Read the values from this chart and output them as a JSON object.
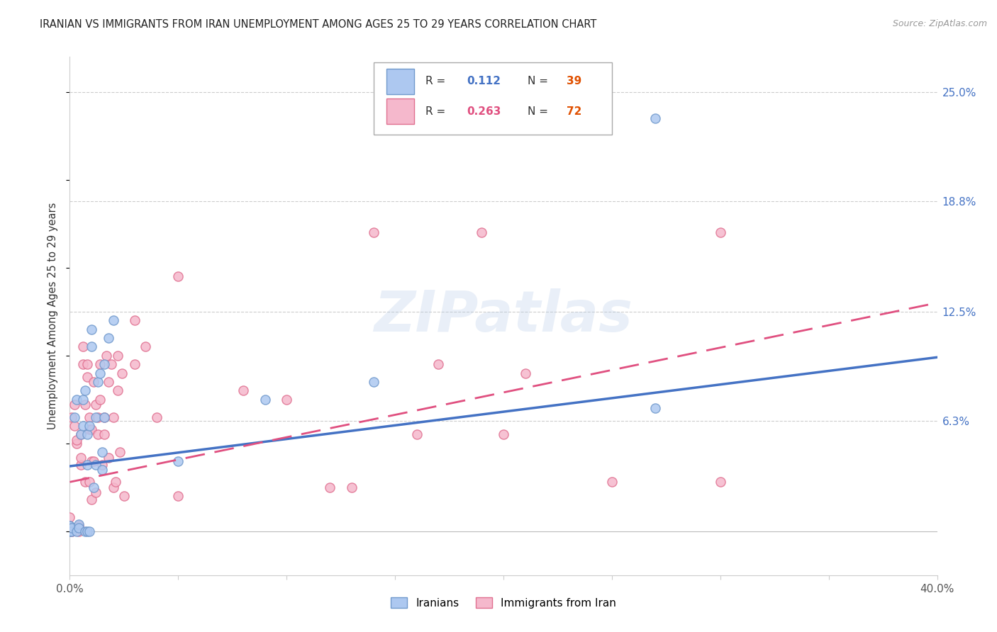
{
  "title": "IRANIAN VS IMMIGRANTS FROM IRAN UNEMPLOYMENT AMONG AGES 25 TO 29 YEARS CORRELATION CHART",
  "source": "Source: ZipAtlas.com",
  "ylabel": "Unemployment Among Ages 25 to 29 years",
  "xlim": [
    0.0,
    0.4
  ],
  "ylim": [
    -0.025,
    0.27
  ],
  "xtick_positions": [
    0.0,
    0.05,
    0.1,
    0.15,
    0.2,
    0.25,
    0.3,
    0.35,
    0.4
  ],
  "xticklabels": [
    "0.0%",
    "",
    "",
    "",
    "",
    "",
    "",
    "",
    "40.0%"
  ],
  "ytick_positions": [
    0.063,
    0.125,
    0.188,
    0.25
  ],
  "ytick_labels": [
    "6.3%",
    "12.5%",
    "18.8%",
    "25.0%"
  ],
  "series1_label": "Iranians",
  "series2_label": "Immigrants from Iran",
  "series1_color": "#adc8f0",
  "series2_color": "#f5b8cc",
  "series1_edge": "#7099cc",
  "series2_edge": "#e07090",
  "trend1_color": "#4472c4",
  "trend2_color": "#e05080",
  "legend_R_color1": "#4472c4",
  "legend_R_color2": "#e05080",
  "legend_N_color1": "#e05000",
  "legend_N_color2": "#e05000",
  "watermark_text": "ZIPatlas",
  "series1_R": "0.112",
  "series1_N": "39",
  "series2_R": "0.263",
  "series2_N": "72",
  "trend1_x0": 0.0,
  "trend1_y0": 0.037,
  "trend1_x1": 0.4,
  "trend1_y1": 0.099,
  "trend2_x0": 0.0,
  "trend2_y0": 0.028,
  "trend2_x1": 0.4,
  "trend2_y1": 0.13,
  "series1_x": [
    0.0,
    0.0,
    0.0,
    0.0,
    0.001,
    0.001,
    0.002,
    0.003,
    0.003,
    0.004,
    0.004,
    0.005,
    0.006,
    0.006,
    0.007,
    0.007,
    0.008,
    0.008,
    0.008,
    0.009,
    0.009,
    0.01,
    0.01,
    0.011,
    0.012,
    0.012,
    0.013,
    0.014,
    0.015,
    0.015,
    0.016,
    0.016,
    0.018,
    0.02,
    0.05,
    0.09,
    0.14,
    0.27,
    0.27
  ],
  "series1_y": [
    0.0,
    0.0,
    0.003,
    0.003,
    0.0,
    0.002,
    0.065,
    0.075,
    0.0,
    0.004,
    0.002,
    0.055,
    0.06,
    0.075,
    0.08,
    0.0,
    0.0,
    0.038,
    0.055,
    0.0,
    0.06,
    0.105,
    0.115,
    0.025,
    0.038,
    0.065,
    0.085,
    0.09,
    0.035,
    0.045,
    0.065,
    0.095,
    0.11,
    0.12,
    0.04,
    0.075,
    0.085,
    0.07,
    0.235
  ],
  "series2_x": [
    0.0,
    0.0,
    0.0,
    0.0,
    0.0,
    0.0,
    0.001,
    0.001,
    0.001,
    0.002,
    0.002,
    0.003,
    0.003,
    0.004,
    0.004,
    0.005,
    0.005,
    0.005,
    0.006,
    0.006,
    0.007,
    0.007,
    0.008,
    0.008,
    0.009,
    0.009,
    0.009,
    0.01,
    0.01,
    0.01,
    0.011,
    0.011,
    0.012,
    0.012,
    0.013,
    0.013,
    0.014,
    0.014,
    0.015,
    0.016,
    0.016,
    0.017,
    0.018,
    0.018,
    0.019,
    0.02,
    0.02,
    0.021,
    0.022,
    0.022,
    0.023,
    0.024,
    0.025,
    0.03,
    0.03,
    0.035,
    0.04,
    0.05,
    0.05,
    0.08,
    0.1,
    0.12,
    0.13,
    0.14,
    0.16,
    0.17,
    0.19,
    0.2,
    0.21,
    0.25,
    0.3,
    0.3
  ],
  "series2_y": [
    0.0,
    0.0,
    0.0,
    0.003,
    0.002,
    0.008,
    0.0,
    0.0,
    0.065,
    0.06,
    0.072,
    0.05,
    0.052,
    0.0,
    0.003,
    0.038,
    0.042,
    0.055,
    0.095,
    0.105,
    0.028,
    0.072,
    0.088,
    0.095,
    0.028,
    0.058,
    0.065,
    0.018,
    0.04,
    0.058,
    0.04,
    0.085,
    0.022,
    0.072,
    0.065,
    0.055,
    0.075,
    0.095,
    0.038,
    0.055,
    0.065,
    0.1,
    0.042,
    0.085,
    0.095,
    0.025,
    0.065,
    0.028,
    0.08,
    0.1,
    0.045,
    0.09,
    0.02,
    0.12,
    0.095,
    0.105,
    0.065,
    0.02,
    0.145,
    0.08,
    0.075,
    0.025,
    0.025,
    0.17,
    0.055,
    0.095,
    0.17,
    0.055,
    0.09,
    0.028,
    0.028,
    0.17
  ],
  "figsize": [
    14.06,
    8.92
  ],
  "dpi": 100
}
